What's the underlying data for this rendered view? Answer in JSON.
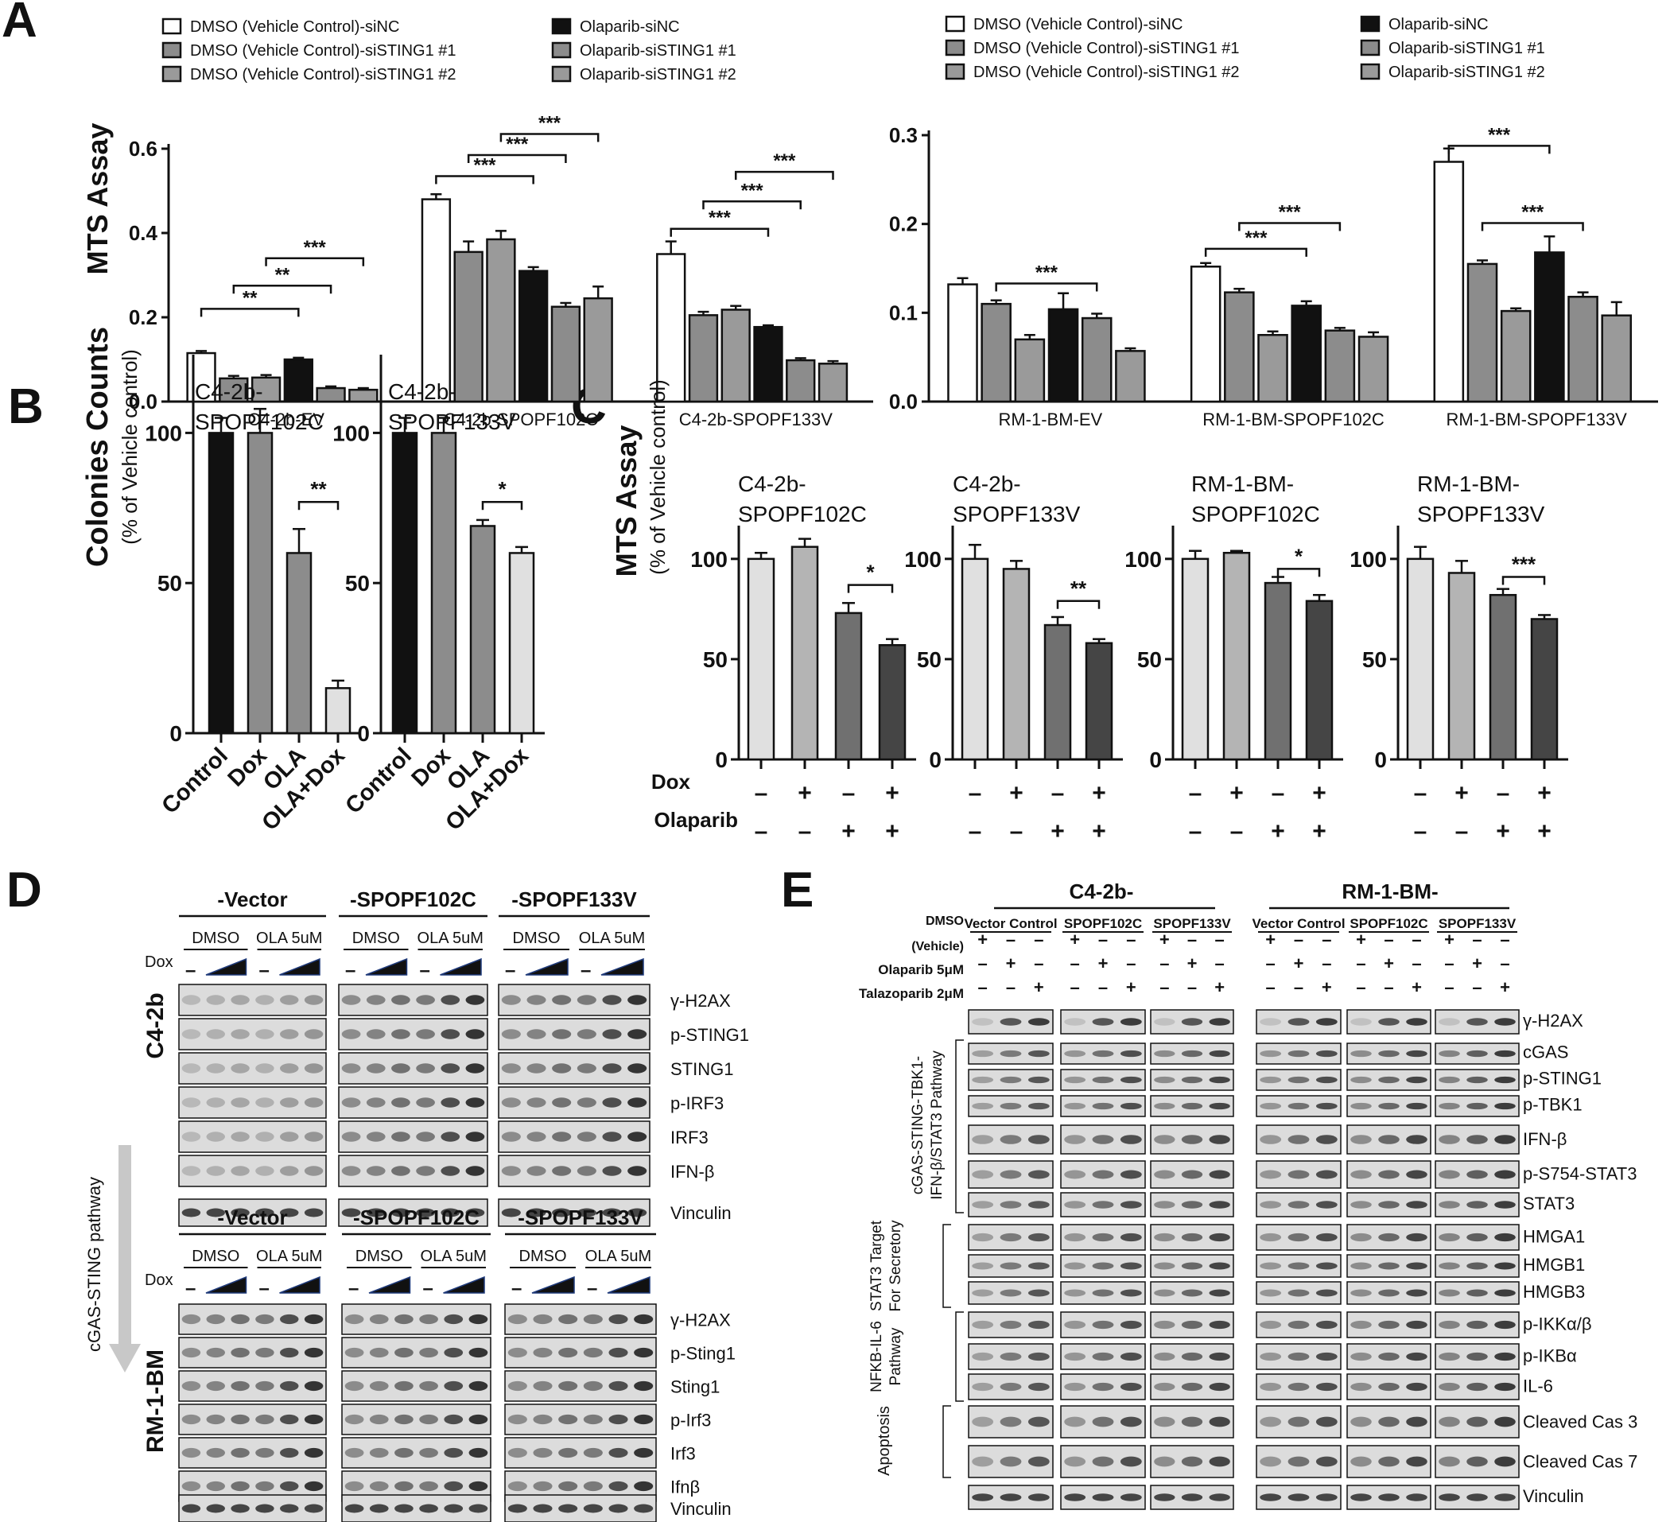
{
  "panel_letters": [
    "A",
    "B",
    "C",
    "D",
    "E"
  ],
  "colors": {
    "white": "#ffffff",
    "gray": "#8c8c8c",
    "gray_mid": "#9a9a9a",
    "black": "#111111",
    "light": "#e0e0e0",
    "mid": "#b4b4b4",
    "dark": "#707070",
    "darker": "#454545",
    "blot_bg": "#dcdcdc",
    "band": "#2a2a2a",
    "arrow": "#c8c8c8"
  },
  "panelA": {
    "legend": [
      "DMSO (Vehicle Control)-siNC",
      "DMSO (Vehicle Control)-siSTING1 #1",
      "DMSO (Vehicle Control)-siSTING1 #2",
      "Olaparib-siNC",
      "Olaparib-siSTING1 #1",
      "Olaparib-siSTING1 #2"
    ],
    "ylabel": "MTS Assay"
  },
  "chart_data": [
    {
      "type": "bar",
      "panel": "A-left",
      "ylabel": "MTS Assay",
      "ylim": [
        0,
        0.6
      ],
      "yticks": [
        "0.0",
        "0.2",
        "0.4",
        "0.6"
      ],
      "categories": [
        "C4-2b-EV",
        "C4-2b-SPOPF102C",
        "C4-2b-SPOPF133V"
      ],
      "series": [
        {
          "name": "DMSO (Vehicle Control)-siNC",
          "values": [
            0.115,
            0.48,
            0.35
          ]
        },
        {
          "name": "DMSO (Vehicle Control)-siSTING1 #1",
          "values": [
            0.055,
            0.355,
            0.205
          ]
        },
        {
          "name": "DMSO (Vehicle Control)-siSTING1 #2",
          "values": [
            0.057,
            0.385,
            0.218
          ]
        },
        {
          "name": "Olaparib-siNC",
          "values": [
            0.1,
            0.31,
            0.177
          ]
        },
        {
          "name": "Olaparib-siSTING1 #1",
          "values": [
            0.032,
            0.225,
            0.098
          ]
        },
        {
          "name": "Olaparib-siSTING1 #2",
          "values": [
            0.028,
            0.245,
            0.09
          ]
        }
      ],
      "errors": [
        [
          0.005,
          0.012,
          0.03
        ],
        [
          0.006,
          0.025,
          0.008
        ],
        [
          0.006,
          0.02,
          0.009
        ],
        [
          0.004,
          0.009,
          0.004
        ],
        [
          0.004,
          0.009,
          0.005
        ],
        [
          0.004,
          0.028,
          0.006
        ]
      ],
      "significance": [
        {
          "group": 0,
          "from": 0,
          "to": 3,
          "level": 0.22,
          "label": "**"
        },
        {
          "group": 0,
          "from": 1,
          "to": 4,
          "level": 0.275,
          "label": "**"
        },
        {
          "group": 0,
          "from": 2,
          "to": 5,
          "level": 0.34,
          "label": "***"
        },
        {
          "group": 1,
          "from": 0,
          "to": 3,
          "level": 0.535,
          "label": "***"
        },
        {
          "group": 1,
          "from": 1,
          "to": 4,
          "level": 0.585,
          "label": "***"
        },
        {
          "group": 1,
          "from": 2,
          "to": 5,
          "level": 0.635,
          "label": "***"
        },
        {
          "group": 2,
          "from": 0,
          "to": 3,
          "level": 0.41,
          "label": "***"
        },
        {
          "group": 2,
          "from": 1,
          "to": 4,
          "level": 0.475,
          "label": "***"
        },
        {
          "group": 2,
          "from": 2,
          "to": 5,
          "level": 0.545,
          "label": "***"
        }
      ]
    },
    {
      "type": "bar",
      "panel": "A-right",
      "ylim": [
        0,
        0.3
      ],
      "yticks": [
        "0.0",
        "0.1",
        "0.2",
        "0.3"
      ],
      "categories": [
        "RM-1-BM-EV",
        "RM-1-BM-SPOPF102C",
        "RM-1-BM-SPOPF133V"
      ],
      "series": [
        {
          "name": "DMSO (Vehicle Control)-siNC",
          "values": [
            0.132,
            0.152,
            0.27
          ]
        },
        {
          "name": "DMSO (Vehicle Control)-siSTING1 #1",
          "values": [
            0.11,
            0.123,
            0.155
          ]
        },
        {
          "name": "DMSO (Vehicle Control)-siSTING1 #2",
          "values": [
            0.07,
            0.075,
            0.102
          ]
        },
        {
          "name": "Olaparib-siNC",
          "values": [
            0.104,
            0.108,
            0.168
          ]
        },
        {
          "name": "Olaparib-siSTING1 #1",
          "values": [
            0.094,
            0.08,
            0.118
          ]
        },
        {
          "name": "Olaparib-siSTING1 #2",
          "values": [
            0.057,
            0.073,
            0.097
          ]
        }
      ],
      "errors": [
        [
          0.007,
          0.004,
          0.015
        ],
        [
          0.004,
          0.004,
          0.004
        ],
        [
          0.005,
          0.004,
          0.003
        ],
        [
          0.018,
          0.005,
          0.018
        ],
        [
          0.005,
          0.003,
          0.005
        ],
        [
          0.003,
          0.005,
          0.015
        ]
      ],
      "significance": [
        {
          "group": 0,
          "from": 1,
          "to": 4,
          "level": 0.133,
          "label": "***"
        },
        {
          "group": 1,
          "from": 0,
          "to": 3,
          "level": 0.172,
          "label": "***"
        },
        {
          "group": 1,
          "from": 1,
          "to": 4,
          "level": 0.201,
          "label": "***"
        },
        {
          "group": 2,
          "from": 0,
          "to": 3,
          "level": 0.288,
          "label": "***"
        },
        {
          "group": 2,
          "from": 1,
          "to": 4,
          "level": 0.201,
          "label": "***"
        }
      ]
    },
    {
      "type": "bar",
      "panel": "B",
      "title": "C4-2b-SPOPF102C",
      "ylabel": "Colonies  Counts",
      "ylabel2": "(% of Vehicle control)",
      "ylim": [
        0,
        125
      ],
      "yticks": [
        "0",
        "50",
        "100"
      ],
      "categories": [
        "Control",
        "Dox",
        "OLA",
        "OLA+Dox"
      ],
      "values": [
        100,
        100,
        60,
        15
      ],
      "errors": [
        5,
        8,
        8,
        2.5
      ],
      "significance": [
        {
          "from": 2,
          "to": 3,
          "level": 77,
          "label": "**"
        }
      ]
    },
    {
      "type": "bar",
      "panel": "B",
      "title": "C4-2b-SPOPF133V",
      "ylim": [
        0,
        125
      ],
      "yticks": [
        "0",
        "50",
        "100"
      ],
      "categories": [
        "Control",
        "Dox",
        "OLA",
        "OLA+Dox"
      ],
      "values": [
        100,
        100,
        69,
        60
      ],
      "errors": [
        5,
        5,
        2,
        2
      ],
      "significance": [
        {
          "from": 2,
          "to": 3,
          "level": 77,
          "label": "*"
        }
      ]
    },
    {
      "type": "bar",
      "panel": "C",
      "title": "C4-2b-SPOPF102C",
      "ylabel": "MTS Assay",
      "ylabel2": "(% of Vehicle control)",
      "ylim": [
        0,
        115
      ],
      "yticks": [
        "0",
        "50",
        "100"
      ],
      "values": [
        100,
        106,
        73,
        57
      ],
      "errors": [
        3,
        4,
        5,
        3
      ],
      "significance": [
        {
          "from": 2,
          "to": 3,
          "level": 87,
          "label": "*"
        }
      ]
    },
    {
      "type": "bar",
      "panel": "C",
      "title": "C4-2b-SPOPF133V",
      "ylim": [
        0,
        115
      ],
      "yticks": [
        "0",
        "50",
        "100"
      ],
      "values": [
        100,
        95,
        67,
        58
      ],
      "errors": [
        7,
        4,
        4,
        2
      ],
      "significance": [
        {
          "from": 2,
          "to": 3,
          "level": 79,
          "label": "**"
        }
      ]
    },
    {
      "type": "bar",
      "panel": "C",
      "title": "RM-1-BM-SPOPF102C",
      "ylim": [
        0,
        115
      ],
      "yticks": [
        "0",
        "50",
        "100"
      ],
      "values": [
        100,
        103,
        88,
        79
      ],
      "errors": [
        4,
        1,
        3,
        3
      ],
      "significance": [
        {
          "from": 2,
          "to": 3,
          "level": 95,
          "label": "*"
        }
      ]
    },
    {
      "type": "bar",
      "panel": "C",
      "title": "RM-1-BM-SPOPF133V",
      "ylim": [
        0,
        115
      ],
      "yticks": [
        "0",
        "50",
        "100"
      ],
      "values": [
        100,
        93,
        82,
        70
      ],
      "errors": [
        6,
        6,
        3,
        2
      ],
      "significance": [
        {
          "from": 2,
          "to": 3,
          "level": 91,
          "label": "***"
        }
      ]
    }
  ],
  "panelB": {
    "titles": [
      [
        "C4-2b-",
        "SPOPF102C"
      ],
      [
        "C4-2b-",
        "SPOPF133V"
      ]
    ],
    "ylabel": "Colonies  Counts",
    "ylabel2": "(% of Vehicle control)"
  },
  "panelC": {
    "titles": [
      [
        "C4-2b-",
        "SPOPF102C"
      ],
      [
        "C4-2b-",
        "SPOPF133V"
      ],
      [
        "RM-1-BM-",
        "SPOPF102C"
      ],
      [
        "RM-1-BM-",
        "SPOPF133V"
      ]
    ],
    "ylabel": "MTS Assay",
    "ylabel2": "(% of Vehicle control)",
    "row_labels": [
      "Dox",
      "Olaparib"
    ],
    "dox_signs": [
      "–",
      "+",
      "–",
      "+"
    ],
    "olaparib_signs": [
      "–",
      "–",
      "+",
      "+"
    ]
  },
  "panelD": {
    "groups": [
      "-Vector",
      "-SPOPF102C",
      "-SPOPF133V"
    ],
    "treatments": [
      "DMSO",
      "OLA 5uM"
    ],
    "dox_label": "Dox",
    "dash": "–",
    "side_c42b": "C4-2b",
    "side_rm1": "RM-1-BM",
    "pathway_label": "cGAS-STING pathway",
    "rows_c42b": [
      "γ-H2AX",
      "p-STING1",
      "STING1",
      "p-IRF3",
      "IRF3",
      "IFN-β"
    ],
    "rows_rm1": [
      "γ-H2AX",
      "p-Sting1",
      "Sting1",
      "p-Irf3",
      "Irf3",
      "Ifnβ"
    ],
    "loading": "Vinculin"
  },
  "panelE": {
    "cell_lines": [
      "C4-2b-",
      "RM-1-BM-"
    ],
    "subgroups": [
      "Vector Control",
      "SPOPF102C",
      "SPOPF133V"
    ],
    "treatment_rows": [
      "DMSO",
      "(Vehicle)",
      "Olaparib 5μM",
      "Talazoparib 2μM"
    ],
    "sign_rows": [
      [
        "+",
        "–",
        "–"
      ],
      [
        "–",
        "+",
        "–"
      ],
      [
        "–",
        "–",
        "+"
      ]
    ],
    "section_labels": [
      "cGAS-STING-TBK1-",
      "IFN-β/STAT3 Pathway",
      "STAT3 Target",
      "For Secretory",
      "NFKB-IL-6",
      "Pathway",
      "Apoptosis"
    ],
    "rows": [
      "γ-H2AX",
      "cGAS",
      "p-STING1",
      "p-TBK1",
      "IFN-β",
      "p-S754-STAT3",
      "STAT3",
      "HMGA1",
      "HMGB1",
      "HMGB3",
      "p-IKKα/β",
      "p-IKBα",
      "IL-6",
      "Cleaved Cas 3",
      "Cleaved Cas 7",
      "Vinculin"
    ]
  }
}
